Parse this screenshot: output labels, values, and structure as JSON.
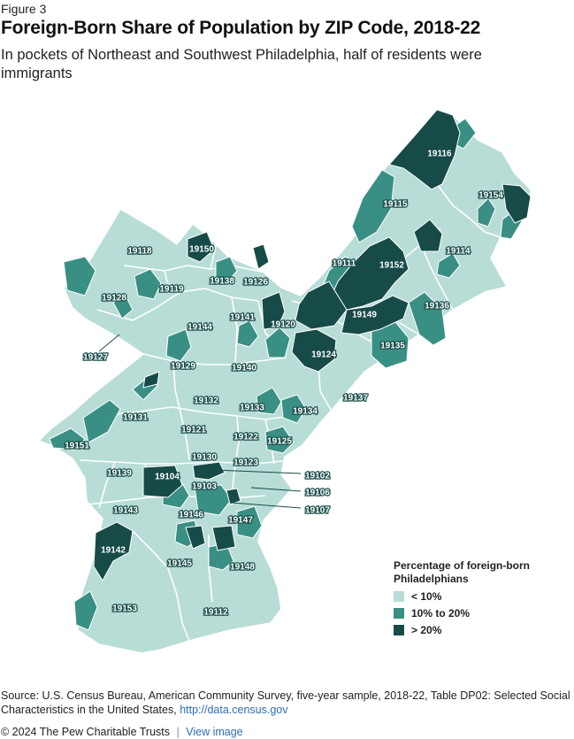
{
  "figure_label": "Figure 3",
  "title": "Foreign-Born Share of Population by ZIP Code, 2018-22",
  "subtitle": "In pockets of Northeast and Southwest Philadelphia, half of residents were immigrants",
  "colors": {
    "low": "#b7ddd6",
    "mid": "#3a8f84",
    "high": "#174b48",
    "border": "#ffffff",
    "label_light_bg": "#ffffff",
    "label_dark_text": "#174b48",
    "link": "#2f6db5"
  },
  "legend": {
    "title": "Percentage of foreign-born Philadelphians",
    "items": [
      {
        "label": "< 10%",
        "color": "#b7ddd6"
      },
      {
        "label": "10% to 20%",
        "color": "#3a8f84"
      },
      {
        "label": "> 20%",
        "color": "#174b48"
      }
    ]
  },
  "zip_labels": [
    "19116",
    "19154",
    "19115",
    "19114",
    "19118",
    "19150",
    "19111",
    "19152",
    "19128",
    "19119",
    "19138",
    "19126",
    "19136",
    "19141",
    "19120",
    "19149",
    "19144",
    "19127",
    "19135",
    "19124",
    "19129",
    "19140",
    "19137",
    "19132",
    "19133",
    "19134",
    "19131",
    "19121",
    "19122",
    "19125",
    "19151",
    "19130",
    "19123",
    "19102",
    "19139",
    "19104",
    "19103",
    "19106",
    "19107",
    "19146",
    "19147",
    "19143",
    "19142",
    "19145",
    "19148",
    "19153",
    "19112"
  ],
  "source": {
    "text": "Source: U.S. Census Bureau, American Community Survey, five-year sample, 2018-22, Table DP02: Selected Social Characteristics in the United States,",
    "link": "http://data.census.gov"
  },
  "footer": {
    "copyright": "© 2024 The Pew Charitable Trusts",
    "separator": "|",
    "view_image": "View image"
  }
}
